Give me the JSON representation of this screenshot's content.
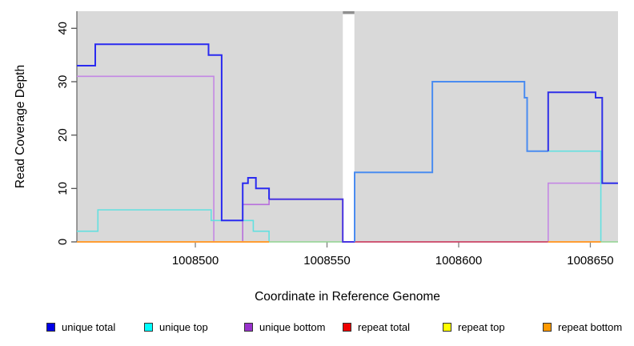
{
  "figure": {
    "x_axis_label": "Coordinate in Reference Genome",
    "y_axis_label": "Read Coverage Depth"
  },
  "chart_data": {
    "type": "line",
    "subtype": "step-coverage-plot",
    "title": "",
    "xlabel": "Coordinate in Reference Genome",
    "ylabel": "Read Coverage Depth",
    "xlim": [
      1008455,
      1008660.5
    ],
    "ylim": [
      0,
      43.2
    ],
    "panel_bg": "#d9d9d9",
    "grid": false,
    "gap_region": {
      "x1": 1008556,
      "x2": 1008560.4,
      "cap_color": "#8f8f8f"
    },
    "x_ticks": [
      {
        "value": 1008500,
        "label": "1008500"
      },
      {
        "value": 1008550,
        "label": "1008550"
      },
      {
        "value": 1008600,
        "label": "1008600"
      },
      {
        "value": 1008650,
        "label": "1008650"
      }
    ],
    "y_ticks": [
      {
        "value": 0,
        "label": "0"
      },
      {
        "value": 10,
        "label": "10"
      },
      {
        "value": 20,
        "label": "20"
      },
      {
        "value": 30,
        "label": "30"
      },
      {
        "value": 40,
        "label": "40"
      }
    ],
    "series": [
      {
        "name": "unique-bottom-left",
        "color": "#c488e4",
        "width": 1.6,
        "points": [
          [
            1008455,
            31
          ],
          [
            1008507,
            31
          ],
          [
            1008507,
            0
          ]
        ]
      },
      {
        "name": "unique-bottom-mid",
        "color": "#b76fdc",
        "width": 1.6,
        "points": [
          [
            1008518,
            0
          ],
          [
            1008518,
            7
          ],
          [
            1008528,
            7
          ],
          [
            1008528,
            8
          ],
          [
            1008556,
            8
          ],
          [
            1008556,
            0
          ]
        ]
      },
      {
        "name": "unique-bottom-right",
        "color": "#c488e4",
        "width": 1.6,
        "points": [
          [
            1008634,
            0
          ],
          [
            1008634,
            11
          ],
          [
            1008660.5,
            11
          ]
        ]
      },
      {
        "name": "unique-top-left",
        "color": "#63e0e0",
        "width": 1.6,
        "points": [
          [
            1008455,
            2
          ],
          [
            1008463,
            2
          ],
          [
            1008463,
            6
          ],
          [
            1008506,
            6
          ],
          [
            1008506,
            4
          ],
          [
            1008522,
            4
          ],
          [
            1008522,
            2
          ],
          [
            1008528,
            2
          ],
          [
            1008528,
            0
          ]
        ]
      },
      {
        "name": "unique-top-right",
        "color": "#63e0e0",
        "width": 1.6,
        "points": [
          [
            1008634,
            17
          ],
          [
            1008654,
            17
          ],
          [
            1008654,
            0
          ]
        ]
      },
      {
        "name": "repeat-total-visible",
        "color": "#cc4466",
        "width": 1.8,
        "points": [
          [
            1008560.4,
            0
          ],
          [
            1008634,
            0
          ]
        ]
      },
      {
        "name": "overlap-green-left",
        "color": "#8fd48f",
        "width": 1.6,
        "points": [
          [
            1008528,
            0
          ],
          [
            1008556,
            0
          ]
        ]
      },
      {
        "name": "overlap-green-right",
        "color": "#8fd48f",
        "width": 1.6,
        "points": [
          [
            1008654,
            0
          ],
          [
            1008660.5,
            0
          ]
        ]
      },
      {
        "name": "repeat-bottom-left",
        "color": "#ff9d33",
        "width": 2,
        "points": [
          [
            1008455,
            0
          ],
          [
            1008528,
            0
          ]
        ]
      },
      {
        "name": "repeat-bottom-right",
        "color": "#ff9d33",
        "width": 2,
        "points": [
          [
            1008634,
            0
          ],
          [
            1008654,
            0
          ]
        ]
      },
      {
        "name": "unique-total-8run",
        "color": "#4a35e0",
        "width": 2,
        "points": [
          [
            1008528,
            8
          ],
          [
            1008556,
            8
          ],
          [
            1008556,
            0
          ],
          [
            1008560.5,
            0
          ]
        ]
      },
      {
        "name": "unique-total-left",
        "color": "#2a2af0",
        "width": 2,
        "points": [
          [
            1008455,
            33
          ],
          [
            1008462,
            33
          ],
          [
            1008462,
            37
          ],
          [
            1008505,
            37
          ],
          [
            1008505,
            35
          ],
          [
            1008510,
            35
          ],
          [
            1008510,
            4
          ],
          [
            1008518,
            4
          ],
          [
            1008518,
            11
          ],
          [
            1008520,
            11
          ],
          [
            1008520,
            12
          ],
          [
            1008523,
            12
          ],
          [
            1008523,
            10
          ],
          [
            1008528,
            10
          ],
          [
            1008528,
            8
          ]
        ]
      },
      {
        "name": "unique-total-plus-top-right",
        "color": "#4a8cf0",
        "width": 2,
        "points": [
          [
            1008560.5,
            0
          ],
          [
            1008560.5,
            13
          ],
          [
            1008590,
            13
          ],
          [
            1008590,
            30
          ],
          [
            1008625,
            30
          ],
          [
            1008625,
            27
          ],
          [
            1008626,
            27
          ],
          [
            1008626,
            17
          ],
          [
            1008634,
            17
          ]
        ]
      },
      {
        "name": "unique-total-right",
        "color": "#2f2fe8",
        "width": 2,
        "points": [
          [
            1008634,
            17
          ],
          [
            1008634,
            28
          ],
          [
            1008652,
            28
          ],
          [
            1008652,
            27
          ],
          [
            1008654.5,
            27
          ],
          [
            1008654.5,
            11
          ],
          [
            1008660.5,
            11
          ]
        ]
      }
    ],
    "legend": [
      {
        "label": "unique total",
        "color": "#0000e6"
      },
      {
        "label": "unique top",
        "color": "#00ffff"
      },
      {
        "label": "unique bottom",
        "color": "#9932cc"
      },
      {
        "label": "repeat total",
        "color": "#ee0000"
      },
      {
        "label": "repeat top",
        "color": "#ffff00"
      },
      {
        "label": "repeat bottom",
        "color": "#ff9900"
      }
    ],
    "legend_position": "bottom"
  }
}
